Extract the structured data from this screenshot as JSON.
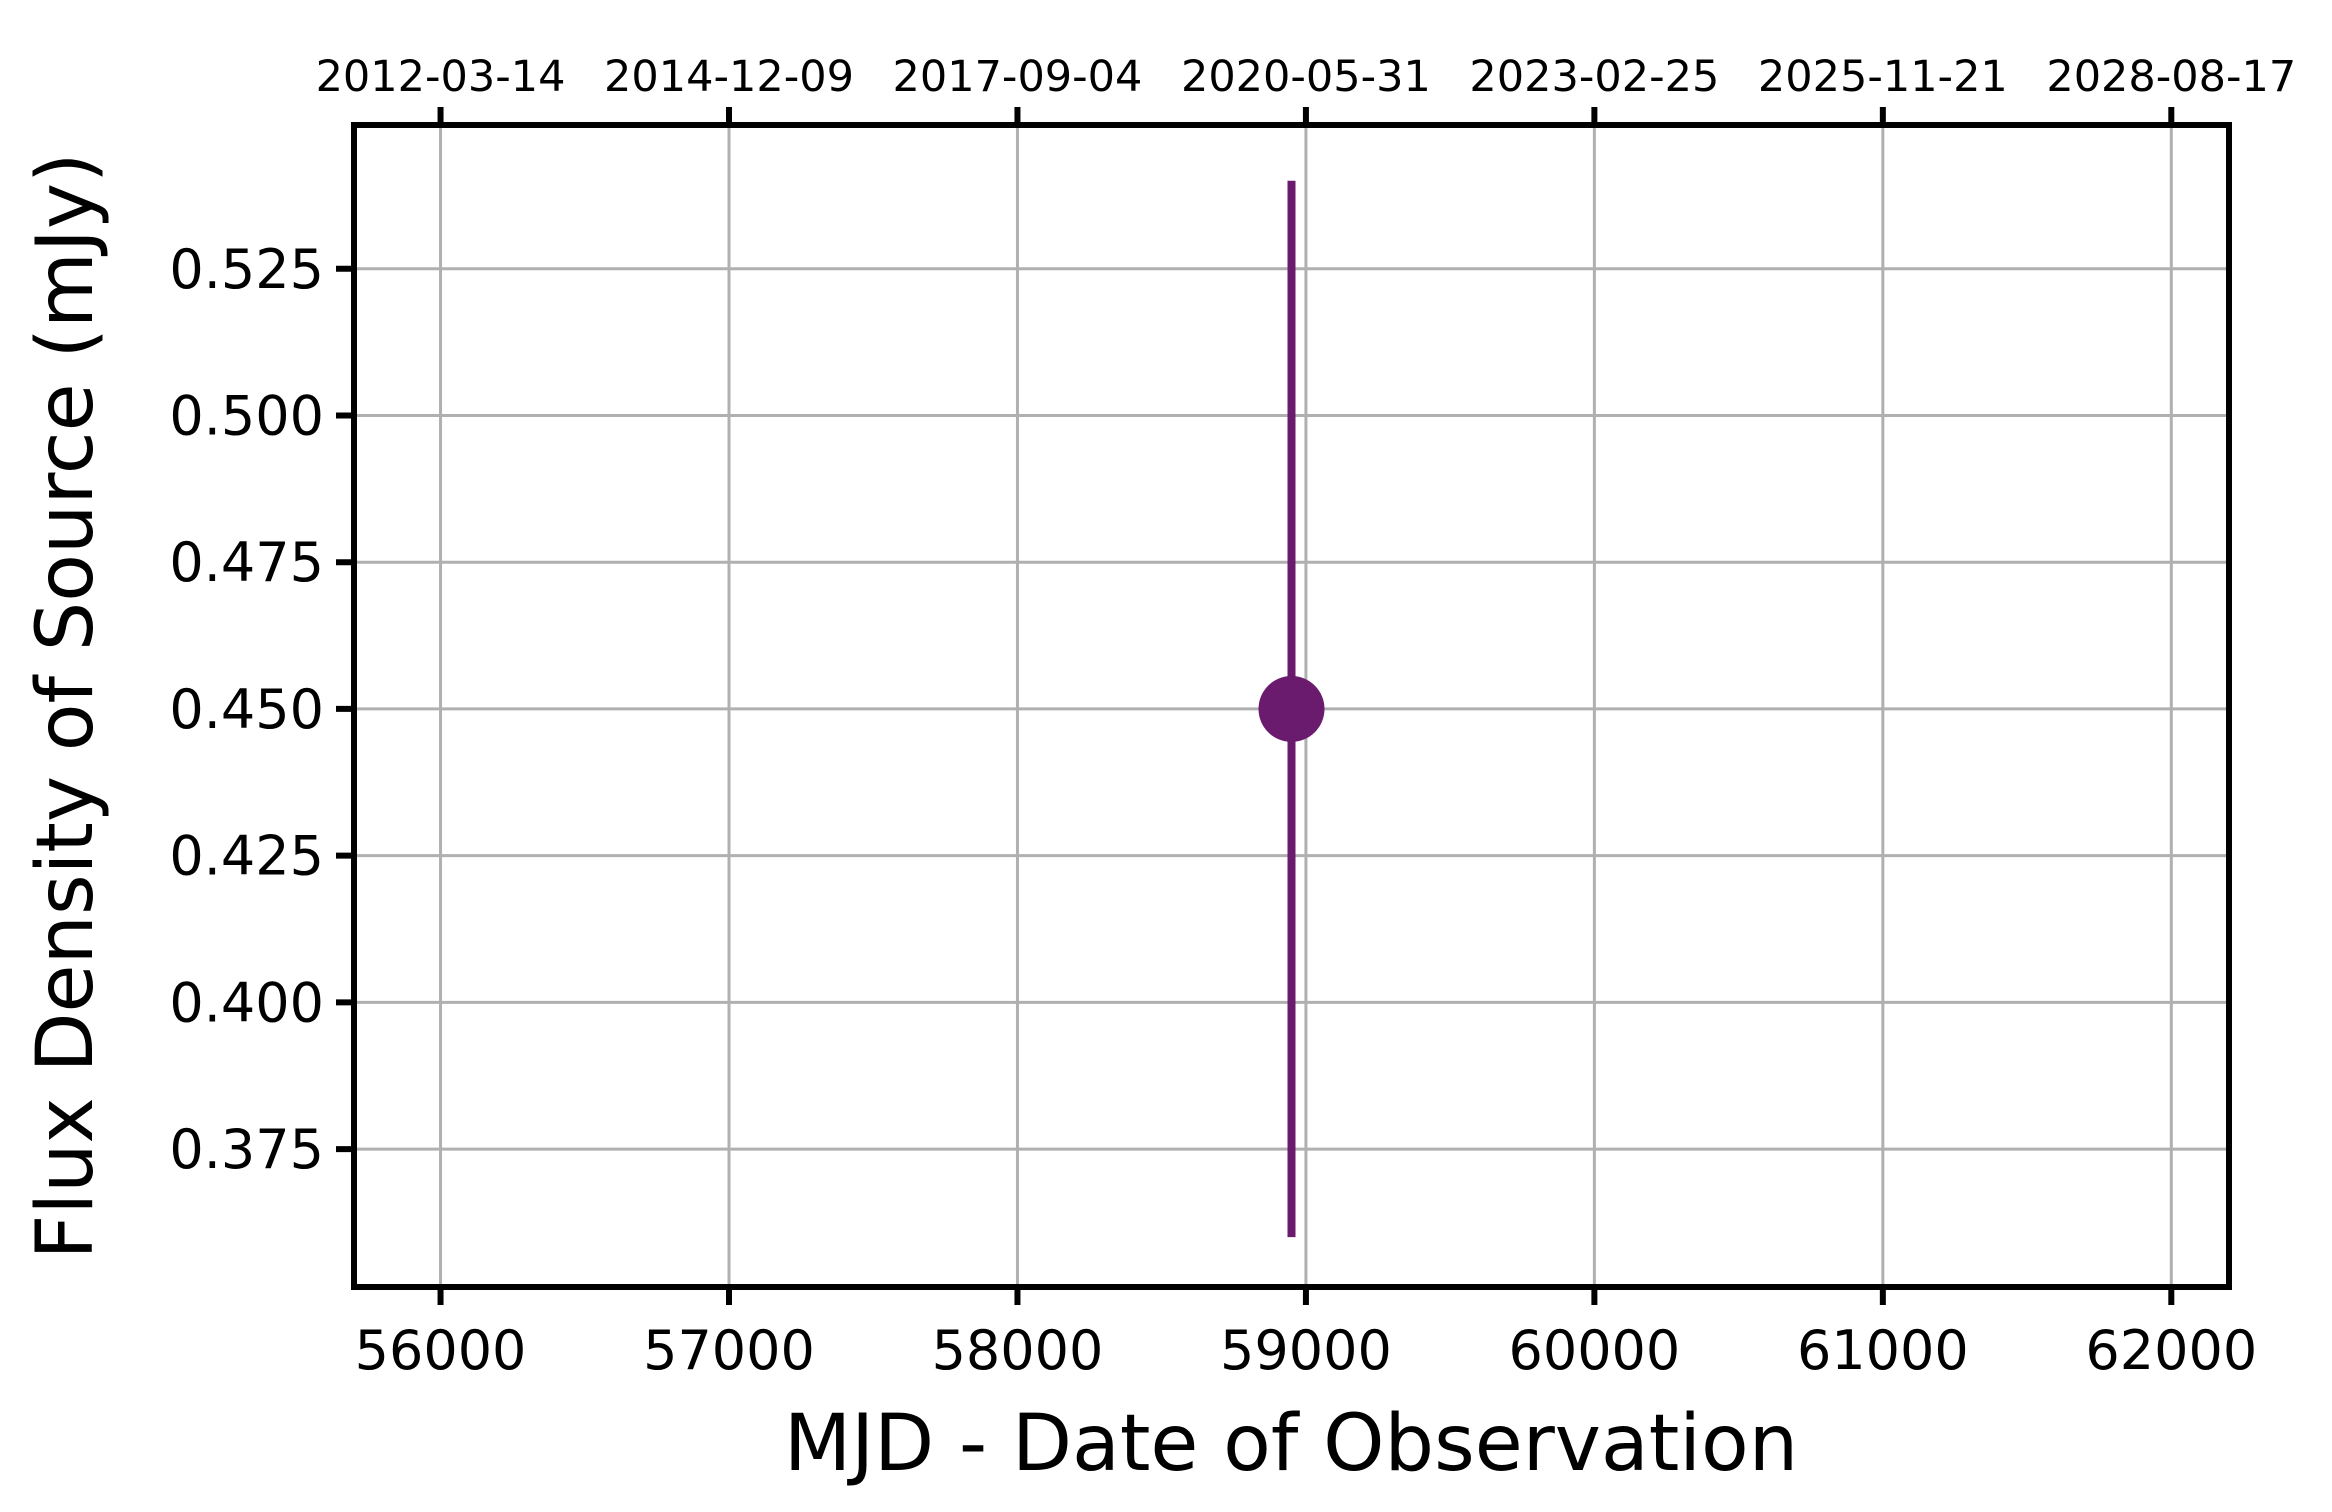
{
  "chart_data": {
    "type": "scatter",
    "xlabel": "MJD - Date of Observation",
    "ylabel": "Flux Density of Source (mJy)",
    "xlim": [
      55700,
      62200
    ],
    "ylim": [
      0.3515,
      0.5495
    ],
    "x_ticks": [
      56000,
      57000,
      58000,
      59000,
      60000,
      61000,
      62000
    ],
    "y_ticks": [
      0.375,
      0.4,
      0.425,
      0.45,
      0.475,
      0.5,
      0.525
    ],
    "y_tick_labels": [
      "0.375",
      "0.400",
      "0.425",
      "0.450",
      "0.475",
      "0.500",
      "0.525"
    ],
    "top_axis": {
      "ticks": [
        56000,
        57000,
        58000,
        59000,
        60000,
        61000,
        62000
      ],
      "labels": [
        "2012-03-14",
        "2014-12-09",
        "2017-09-04",
        "2020-05-31",
        "2023-02-25",
        "2025-11-21",
        "2028-08-17"
      ]
    },
    "grid": true,
    "points": [
      {
        "x": 58950,
        "y": 0.45,
        "yerr_low": 0.36,
        "yerr_high": 0.54
      }
    ],
    "color": "#6a1b6e"
  }
}
